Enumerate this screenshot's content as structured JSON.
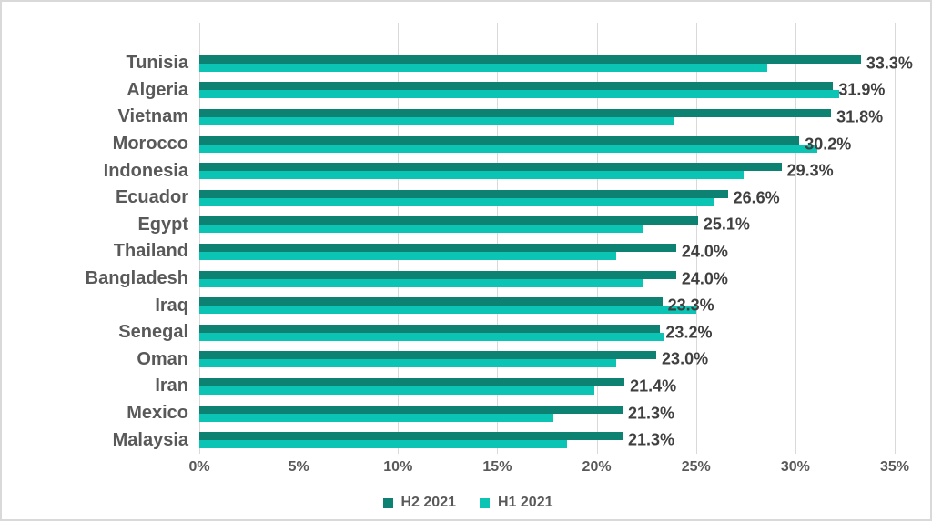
{
  "chart_data": {
    "type": "bar",
    "orientation": "horizontal",
    "title": "",
    "xlabel": "",
    "ylabel": "",
    "grid": "vertical",
    "legend_position": "bottom",
    "axis": {
      "min": 0,
      "max": 35,
      "tick_step": 5,
      "tick_labels": [
        "0%",
        "5%",
        "10%",
        "15%",
        "20%",
        "25%",
        "30%",
        "35%"
      ]
    },
    "categories": [
      "Tunisia",
      "Algeria",
      "Vietnam",
      "Morocco",
      "Indonesia",
      "Ecuador",
      "Egypt",
      "Thailand",
      "Bangladesh",
      "Iraq",
      "Senegal",
      "Oman",
      "Iran",
      "Mexico",
      "Malaysia"
    ],
    "series": [
      {
        "name": "H2 2021",
        "color": "#0d8273",
        "values": [
          33.3,
          31.9,
          31.8,
          30.2,
          29.3,
          26.6,
          25.1,
          24.0,
          24.0,
          23.3,
          23.2,
          23.0,
          21.4,
          21.3,
          21.3
        ],
        "data_labels": [
          "33.3%",
          "31.9%",
          "31.8%",
          "30.2%",
          "29.3%",
          "26.6%",
          "25.1%",
          "24.0%",
          "24.0%",
          "23.3%",
          "23.2%",
          "23.0%",
          "21.4%",
          "21.3%",
          "21.3%"
        ]
      },
      {
        "name": "H1 2021",
        "color": "#0cc4b3",
        "values": [
          28.6,
          32.2,
          23.9,
          31.1,
          27.4,
          25.9,
          22.3,
          21.0,
          22.3,
          25.0,
          23.4,
          21.0,
          19.9,
          17.8,
          18.5
        ]
      }
    ],
    "colors": {
      "gridline": "#d9d9d9",
      "category_label": "#595959",
      "tick_label": "#595959",
      "data_label": "#404040",
      "frame_border": "#d9d9d9",
      "background": "#ffffff"
    }
  },
  "legend": {
    "items": [
      {
        "label": "H2 2021"
      },
      {
        "label": "H1 2021"
      }
    ]
  }
}
